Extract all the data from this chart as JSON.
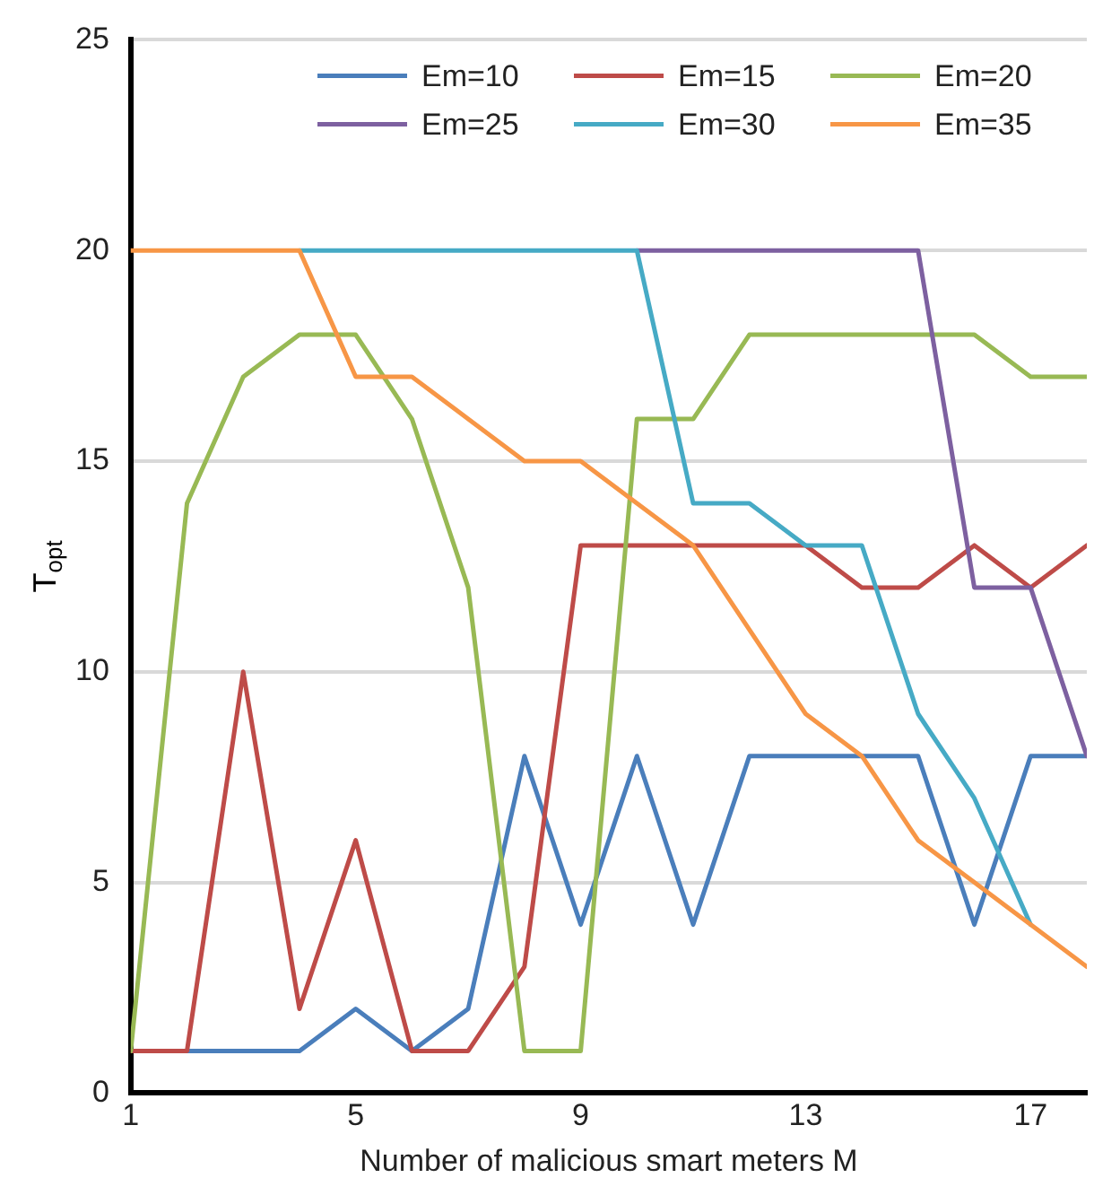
{
  "chart_data": {
    "type": "line",
    "xlabel": "Number of malicious smart meters M",
    "ylabel": "T$_{opt}$",
    "x": [
      1,
      2,
      3,
      4,
      5,
      6,
      7,
      8,
      9,
      10,
      11,
      12,
      13,
      14,
      15,
      16,
      17,
      18
    ],
    "xlim": [
      1,
      18
    ],
    "xticks": [
      1,
      5,
      9,
      13,
      17
    ],
    "ylim": [
      0,
      25
    ],
    "yticks": [
      0,
      5,
      10,
      15,
      20,
      25
    ],
    "grid": "y",
    "legend": "top right",
    "marker": "none",
    "line_style": "solid",
    "series": [
      {
        "name": "Em=10",
        "color": "#4a7ebb",
        "values": [
          null,
          1,
          1,
          1,
          2,
          1,
          2,
          8,
          4,
          8,
          4,
          8,
          8,
          8,
          8,
          4,
          8,
          8
        ]
      },
      {
        "name": "Em=15",
        "color": "#be4b48",
        "values": [
          1,
          1,
          10,
          2,
          6,
          1,
          1,
          3,
          13,
          13,
          13,
          13,
          13,
          12,
          12,
          13,
          12,
          13
        ]
      },
      {
        "name": "Em=20",
        "color": "#98b954",
        "values": [
          1,
          14,
          17,
          18,
          18,
          16,
          12,
          1,
          1,
          16,
          16,
          18,
          18,
          18,
          18,
          18,
          17,
          17
        ]
      },
      {
        "name": "Em=25",
        "color": "#7d60a0",
        "values": [
          null,
          null,
          null,
          null,
          null,
          null,
          null,
          null,
          null,
          20,
          20,
          20,
          20,
          20,
          20,
          12,
          12,
          8
        ]
      },
      {
        "name": "Em=30",
        "color": "#46aac5",
        "values": [
          null,
          null,
          null,
          20,
          20,
          20,
          20,
          20,
          20,
          20,
          14,
          14,
          13,
          13,
          9,
          7,
          4,
          null
        ]
      },
      {
        "name": "Em=35",
        "color": "#f79646",
        "values": [
          20,
          20,
          20,
          20,
          17,
          17,
          16,
          15,
          15,
          14,
          13,
          11,
          9,
          8,
          6,
          5,
          4,
          3
        ]
      }
    ]
  }
}
